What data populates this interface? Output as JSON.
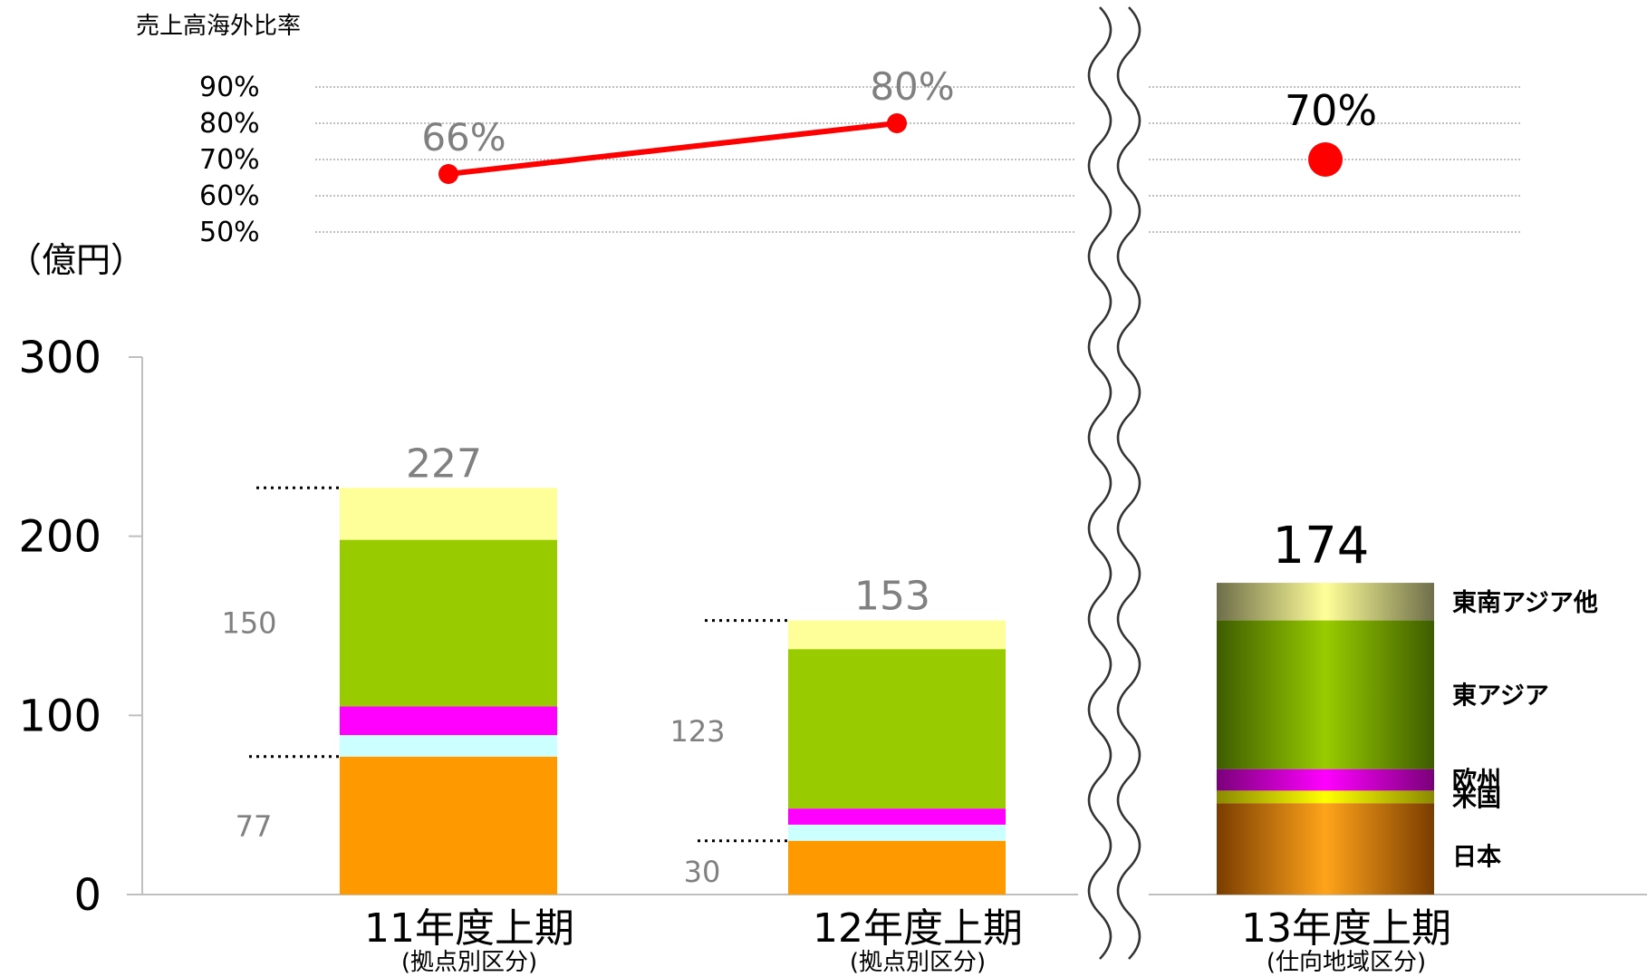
{
  "chart_data": [
    {
      "type": "line",
      "title": "売上高海外比率",
      "y_ticks": [
        "90%",
        "80%",
        "70%",
        "60%",
        "50%"
      ],
      "ylim": [
        50,
        90
      ],
      "series": [
        {
          "points": [
            {
              "category": "11年度上期",
              "value": 66,
              "label": "66%"
            },
            {
              "category": "12年度上期",
              "value": 80,
              "label": "80%"
            }
          ],
          "color": "#ff0000"
        },
        {
          "points": [
            {
              "category": "13年度上期",
              "value": 70,
              "label": "70%"
            }
          ],
          "color": "#ff0000"
        }
      ]
    },
    {
      "type": "bar",
      "stacked": true,
      "ylabel": "（億円）",
      "ylim": [
        0,
        300
      ],
      "y_ticks": [
        "300",
        "200",
        "100",
        "0"
      ],
      "categories": [
        {
          "label": "11年度上期",
          "sublabel": "(拠点別区分)"
        },
        {
          "label": "12年度上期",
          "sublabel": "(拠点別区分)"
        },
        {
          "label": "13年度上期",
          "sublabel": "(仕向地域区分)"
        }
      ],
      "totals": [
        {
          "value": 227,
          "label": "227"
        },
        {
          "value": 153,
          "label": "153"
        },
        {
          "value": 174,
          "label": "174"
        }
      ],
      "stacks": [
        [
          {
            "value": 77,
            "color": "#ff9900"
          },
          {
            "value": 12,
            "color": "#ccffff"
          },
          {
            "value": 16,
            "color": "#ff00ff"
          },
          {
            "value": 93,
            "color": "#99cc00"
          },
          {
            "value": 29,
            "color": "#ffff99"
          }
        ],
        [
          {
            "value": 30,
            "color": "#ff9900"
          },
          {
            "value": 9,
            "color": "#ccffff"
          },
          {
            "value": 9,
            "color": "#ff00ff"
          },
          {
            "value": 89,
            "color": "#99cc00"
          },
          {
            "value": 16,
            "color": "#ffff99"
          }
        ],
        [
          {
            "value": 51,
            "color": "#ff9900",
            "name": "日本"
          },
          {
            "value": 7,
            "color": "#ffff00",
            "name": "米国"
          },
          {
            "value": 12,
            "color": "#ff00ff",
            "name": "欧州"
          },
          {
            "value": 83,
            "color": "#669900",
            "name": "東アジア"
          },
          {
            "value": 21,
            "color": "#ffff99",
            "name": "東南アジア他"
          }
        ]
      ],
      "brackets": [
        {
          "bar": 0,
          "upper": 227,
          "lower": 77,
          "upper_label": "150",
          "lower_label": "77"
        },
        {
          "bar": 1,
          "upper": 153,
          "lower": 30,
          "upper_label": "123",
          "lower_label": "30"
        }
      ]
    }
  ]
}
